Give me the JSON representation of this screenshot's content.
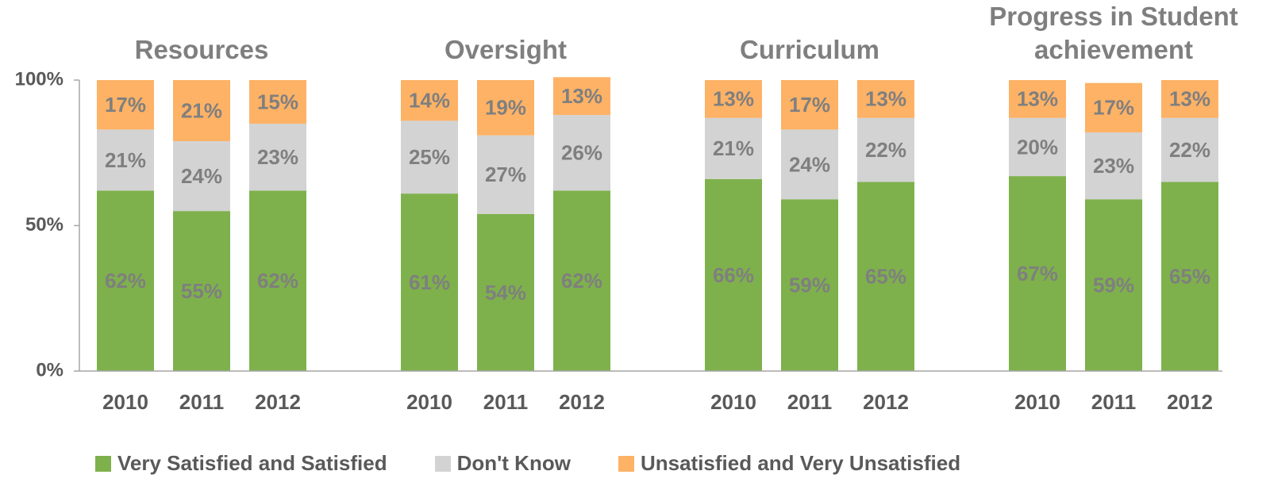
{
  "chart_data": {
    "type": "bar",
    "stacked": true,
    "groups": [
      {
        "title": "Resources",
        "categories": [
          "2010",
          "2011",
          "2012"
        ]
      },
      {
        "title": "Oversight",
        "categories": [
          "2010",
          "2011",
          "2012"
        ]
      },
      {
        "title": "Curriculum",
        "categories": [
          "2010",
          "2011",
          "2012"
        ]
      },
      {
        "title": "Progress in Student achievement",
        "categories": [
          "2010",
          "2011",
          "2012"
        ]
      }
    ],
    "series": [
      {
        "name": "Very Satisfied and Satisfied",
        "color": "#7eb14c",
        "values": [
          [
            62,
            55,
            62
          ],
          [
            61,
            54,
            62
          ],
          [
            66,
            59,
            65
          ],
          [
            67,
            59,
            65
          ]
        ],
        "value_labels": [
          [
            "62%",
            "55%",
            "62%"
          ],
          [
            "61%",
            "54%",
            "62%"
          ],
          [
            "66%",
            "59%",
            "65%"
          ],
          [
            "67%",
            "59%",
            "65%"
          ]
        ]
      },
      {
        "name": "Don't Know",
        "color": "#d3d3d3",
        "values": [
          [
            21,
            24,
            23
          ],
          [
            25,
            27,
            26
          ],
          [
            21,
            24,
            22
          ],
          [
            20,
            23,
            22
          ]
        ],
        "value_labels": [
          [
            "21%",
            "24%",
            "23%"
          ],
          [
            "25%",
            "27%",
            "26%"
          ],
          [
            "21%",
            "24%",
            "22%"
          ],
          [
            "20%",
            "23%",
            "22%"
          ]
        ]
      },
      {
        "name": "Unsatisfied and Very Unsatisfied",
        "color": "#fdb266",
        "values": [
          [
            17,
            21,
            15
          ],
          [
            14,
            19,
            13
          ],
          [
            13,
            17,
            13
          ],
          [
            13,
            17,
            13
          ]
        ],
        "value_labels": [
          [
            "17%",
            "21%",
            "15%"
          ],
          [
            "14%",
            "19%",
            "13%"
          ],
          [
            "13%",
            "17%",
            "13%"
          ],
          [
            "13%",
            "17%",
            "13%"
          ]
        ]
      }
    ],
    "ylim": [
      0,
      100
    ],
    "yticks": [
      {
        "value": 0,
        "label": "0%"
      },
      {
        "value": 50,
        "label": "50%"
      },
      {
        "value": 100,
        "label": "100%"
      }
    ],
    "legend": "bottom"
  }
}
